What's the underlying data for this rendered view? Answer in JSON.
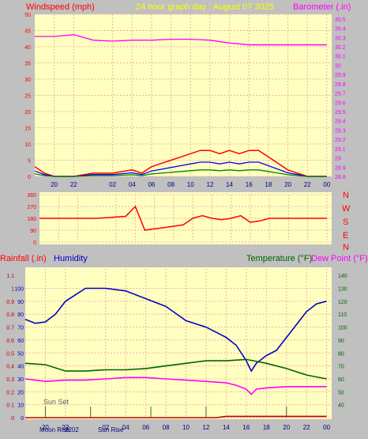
{
  "header": {
    "left_label": "Windspeed (mph)",
    "title": "24 hour graph day : August 07 2025",
    "right_label": "Barometer (.in)"
  },
  "panels": {
    "lower_left_label": "Rainfall (.in)",
    "lower_left_label2": "Humidity",
    "lower_right_label": "Temperature (°F)",
    "lower_right_label2": "Dew Point (°F)",
    "compass": [
      "N",
      "W",
      "S",
      "E",
      "N"
    ],
    "sun_set_label": "Sun Set",
    "bottom_labels": [
      "Moon Rise",
      "2202",
      "Sun Rise"
    ]
  },
  "colors": {
    "plot_bg": "#ffffc0",
    "frame": "#c0c0c0",
    "wind": "#ff0000",
    "gust": "#0000ff",
    "avg": "#008000",
    "barometer": "#ff00ff",
    "humidity": "#0000c0",
    "temperature": "#006400",
    "dewpoint": "#ff00ff",
    "rain": "#c00000",
    "axis_text": "#000080"
  },
  "chart_data": [
    {
      "type": "line",
      "title": "24 hour graph day : August 07 2025",
      "x_ticks": [
        "20",
        "22",
        "02",
        "04",
        "06",
        "08",
        "10",
        "12",
        "14",
        "16",
        "18",
        "20",
        "22",
        "00"
      ],
      "x_hours": [
        20,
        22,
        26,
        28,
        30,
        32,
        34,
        36,
        38,
        40,
        42,
        44,
        46,
        48
      ],
      "ylabel": "Windspeed (mph)",
      "ylim": [
        0,
        50
      ],
      "y_ticks": [
        0,
        5,
        10,
        15,
        20,
        25,
        30,
        35,
        40,
        45,
        50
      ],
      "y2label": "Barometer (.in)",
      "y2lim": [
        28.8,
        30.55
      ],
      "y2_ticks": [
        "28.8",
        "28.9",
        "29",
        "29.1",
        "29.2",
        "29.3",
        "29.4",
        "29.5",
        "29.6",
        "29.7",
        "29.8",
        "29.9",
        "30",
        "30.1",
        "30.2",
        "30.3",
        "30.4",
        "30.5"
      ],
      "series": [
        {
          "name": "Barometer (.in)",
          "axis": "right",
          "x": [
            18,
            20,
            22,
            24,
            26,
            28,
            30,
            32,
            34,
            36,
            38,
            40,
            42,
            44,
            46,
            48
          ],
          "values": [
            30.31,
            30.31,
            30.33,
            30.27,
            30.26,
            30.27,
            30.27,
            30.28,
            30.28,
            30.27,
            30.24,
            30.22,
            30.22,
            30.22,
            30.22,
            30.22
          ]
        },
        {
          "name": "Windspeed (mph)",
          "axis": "left",
          "x": [
            18,
            19,
            20,
            22,
            24,
            26,
            28,
            29,
            30,
            31,
            32,
            33,
            34,
            35,
            36,
            37,
            38,
            39,
            40,
            41,
            42,
            43,
            44,
            45,
            46,
            48
          ],
          "values": [
            3,
            1,
            0,
            0,
            1,
            1,
            2,
            1,
            3,
            4,
            5,
            6,
            7,
            8,
            8,
            7,
            8,
            7,
            8,
            8,
            6,
            4,
            2,
            1,
            0,
            0
          ]
        }
      ]
    },
    {
      "type": "line",
      "ylabel": "Wind direction",
      "ylim": [
        0,
        360
      ],
      "y_ticks": [
        0,
        90,
        180,
        270,
        360
      ],
      "series": [
        {
          "name": "Wind direction",
          "x": [
            18,
            20,
            24,
            27,
            28,
            29,
            30,
            31,
            32,
            33,
            34,
            35,
            36,
            37,
            38,
            39,
            40,
            41,
            42,
            43,
            44,
            46,
            48
          ],
          "values": [
            180,
            180,
            180,
            195,
            270,
            90,
            100,
            110,
            120,
            130,
            180,
            200,
            180,
            170,
            180,
            200,
            150,
            160,
            180,
            180,
            180,
            180,
            180
          ]
        }
      ]
    },
    {
      "type": "line",
      "ylabel": "Rainfall (.in)",
      "ylim": [
        0,
        1.15
      ],
      "y_ticks": [
        "0",
        "0.1",
        "0.2",
        "0.3",
        "0.4",
        "0.5",
        "0.6",
        "0.7",
        "0.8",
        "0.9",
        "1",
        "1.1"
      ],
      "y_left2_ticks": [
        0,
        10,
        20,
        30,
        40,
        50,
        60,
        70,
        80,
        90,
        100
      ],
      "y2label": "Temperature (°F)",
      "y2lim": [
        30,
        145
      ],
      "y2_ticks": [
        40,
        50,
        60,
        70,
        80,
        90,
        100,
        110,
        120,
        130,
        140
      ],
      "series": [
        {
          "name": "Humidity",
          "axis": "left2",
          "x": [
            18,
            19,
            20,
            21,
            22,
            24,
            26,
            28,
            30,
            32,
            34,
            36,
            38,
            39,
            40,
            40.5,
            41,
            42,
            43,
            44,
            45,
            46,
            47,
            48
          ],
          "values": [
            76,
            73,
            74,
            80,
            90,
            100,
            100,
            98,
            92,
            86,
            75,
            70,
            62,
            56,
            44,
            36,
            42,
            48,
            52,
            62,
            72,
            82,
            88,
            90
          ]
        },
        {
          "name": "Temperature (°F)",
          "axis": "right",
          "x": [
            18,
            20,
            22,
            24,
            26,
            28,
            30,
            32,
            34,
            36,
            38,
            40,
            42,
            44,
            46,
            48
          ],
          "values": [
            72,
            71,
            66,
            66,
            67,
            67,
            68,
            70,
            72,
            74,
            74,
            75,
            72,
            68,
            63,
            60
          ]
        },
        {
          "name": "Dew Point (°F)",
          "axis": "right",
          "x": [
            18,
            20,
            22,
            24,
            26,
            28,
            30,
            32,
            34,
            36,
            38,
            39,
            40,
            40.5,
            41,
            42,
            44,
            46,
            48
          ],
          "values": [
            60,
            58,
            59,
            59,
            60,
            61,
            61,
            60,
            59,
            58,
            57,
            55,
            52,
            48,
            52,
            53,
            54,
            54,
            54
          ]
        },
        {
          "name": "Rainfall (.in)",
          "axis": "left",
          "x": [
            18,
            37,
            38,
            48
          ],
          "values": [
            0,
            0,
            0.01,
            0.01
          ]
        }
      ]
    }
  ]
}
